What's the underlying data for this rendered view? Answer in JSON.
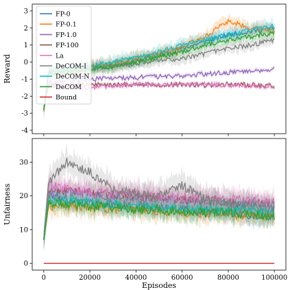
{
  "chart_data": [
    {
      "type": "line",
      "ylabel": "Reward",
      "xlabel": "",
      "xlim": [
        -5000,
        105000
      ],
      "ylim": [
        -4.2,
        3.4
      ],
      "yticks": [
        "-4",
        "-3",
        "-2",
        "-1",
        "0",
        "1",
        "2",
        "3"
      ],
      "grid": false,
      "legend_position": "upper-left",
      "series": [
        {
          "name": "FP-0",
          "color": "#1f77b4",
          "start": -2.8,
          "x": [
            2000,
            10000,
            20000,
            30000,
            40000,
            50000,
            60000,
            70000,
            80000,
            90000,
            100000
          ],
          "y": [
            -0.6,
            -0.5,
            -0.3,
            -0.2,
            0.1,
            0.4,
            0.8,
            1.2,
            1.6,
            1.8,
            2.0
          ],
          "band": 0.3
        },
        {
          "name": "FP-0.1",
          "color": "#ff7f0e",
          "start": -2.9,
          "x": [
            2000,
            10000,
            20000,
            30000,
            40000,
            50000,
            60000,
            70000,
            80000,
            90000,
            100000
          ],
          "y": [
            -0.6,
            -0.5,
            -0.3,
            -0.1,
            0.2,
            0.5,
            0.9,
            1.5,
            2.4,
            2.0,
            1.9
          ],
          "band": 0.35
        },
        {
          "name": "FP-1.0",
          "color": "#9467bd",
          "start": -2.7,
          "x": [
            2000,
            10000,
            20000,
            30000,
            40000,
            50000,
            60000,
            70000,
            80000,
            90000,
            100000
          ],
          "y": [
            -1.2,
            -1.1,
            -1.0,
            -0.95,
            -0.9,
            -0.85,
            -0.8,
            -0.7,
            -0.6,
            -0.5,
            -0.4
          ],
          "band": 0.12
        },
        {
          "name": "FP-100",
          "color": "#8c564b",
          "start": -2.8,
          "x": [
            2000,
            10000,
            20000,
            30000,
            40000,
            50000,
            60000,
            70000,
            80000,
            90000,
            100000
          ],
          "y": [
            -1.4,
            -1.35,
            -1.3,
            -1.35,
            -1.3,
            -1.35,
            -1.3,
            -1.35,
            -1.3,
            -1.35,
            -1.4
          ],
          "band": 0.1
        },
        {
          "name": "La",
          "color": "#e377c2",
          "start": -2.8,
          "x": [
            2000,
            10000,
            20000,
            30000,
            40000,
            50000,
            60000,
            70000,
            80000,
            90000,
            100000
          ],
          "y": [
            -1.3,
            -1.4,
            -1.5,
            -1.4,
            -1.3,
            -1.35,
            -1.3,
            -1.3,
            -1.35,
            -1.4,
            -1.4
          ],
          "band": 0.12
        },
        {
          "name": "DeCOM-I",
          "color": "#7f7f7f",
          "start": -2.8,
          "x": [
            2000,
            10000,
            20000,
            30000,
            40000,
            50000,
            60000,
            70000,
            80000,
            90000,
            100000
          ],
          "y": [
            -0.6,
            -0.6,
            -0.4,
            -0.3,
            -0.1,
            0.1,
            0.2,
            0.5,
            0.8,
            1.0,
            1.3
          ],
          "band": 0.3
        },
        {
          "name": "DeCOM-N",
          "color": "#17becf",
          "start": -2.8,
          "x": [
            2000,
            10000,
            20000,
            30000,
            40000,
            50000,
            60000,
            70000,
            80000,
            90000,
            100000
          ],
          "y": [
            -0.5,
            -0.4,
            -0.2,
            0.0,
            0.3,
            0.6,
            1.0,
            1.3,
            1.6,
            1.9,
            2.1
          ],
          "band": 0.35
        },
        {
          "name": "DeCOM",
          "color": "#2ca02c",
          "start": -2.8,
          "x": [
            2000,
            10000,
            20000,
            30000,
            40000,
            50000,
            60000,
            70000,
            80000,
            90000,
            100000
          ],
          "y": [
            -0.7,
            -0.6,
            -0.4,
            -0.3,
            0.0,
            0.3,
            0.6,
            1.0,
            1.3,
            1.5,
            1.7
          ],
          "band": 0.3
        },
        {
          "name": "Bound",
          "color": "#d62728",
          "start": null,
          "x": [],
          "y": [],
          "band": 0
        }
      ]
    },
    {
      "type": "line",
      "ylabel": "Unfairness",
      "xlabel": "Episodes",
      "xlim": [
        -5000,
        105000
      ],
      "ylim": [
        -2,
        37
      ],
      "yticks": [
        "0",
        "10",
        "20",
        "30"
      ],
      "xticks": [
        "0",
        "20000",
        "40000",
        "60000",
        "80000",
        "100000"
      ],
      "grid": false,
      "series": [
        {
          "name": "FP-0",
          "color": "#1f77b4",
          "start": 7,
          "x": [
            2000,
            10000,
            20000,
            30000,
            40000,
            50000,
            60000,
            70000,
            80000,
            90000,
            100000
          ],
          "y": [
            20,
            19,
            18,
            17.5,
            17,
            16.5,
            16,
            15.5,
            15,
            14.5,
            14
          ],
          "band": 2.5
        },
        {
          "name": "FP-0.1",
          "color": "#ff7f0e",
          "start": 7,
          "x": [
            2000,
            10000,
            20000,
            30000,
            40000,
            50000,
            60000,
            70000,
            80000,
            90000,
            100000
          ],
          "y": [
            17,
            17,
            16.5,
            16,
            16,
            15.5,
            15,
            15,
            14.5,
            14.5,
            14
          ],
          "band": 2.5
        },
        {
          "name": "FP-1.0",
          "color": "#9467bd",
          "start": 7,
          "x": [
            2000,
            10000,
            20000,
            30000,
            40000,
            50000,
            60000,
            70000,
            80000,
            90000,
            100000
          ],
          "y": [
            21,
            21,
            20.5,
            20,
            19.5,
            19,
            18.5,
            18,
            17.5,
            17.5,
            17
          ],
          "band": 2.5
        },
        {
          "name": "FP-100",
          "color": "#8c564b",
          "start": 7,
          "x": [
            2000,
            10000,
            20000,
            30000,
            40000,
            50000,
            60000,
            70000,
            80000,
            90000,
            100000
          ],
          "y": [
            22,
            21.5,
            21,
            20.5,
            20,
            19.5,
            19,
            18.5,
            18,
            18,
            17.5
          ],
          "band": 2.5
        },
        {
          "name": "La",
          "color": "#e377c2",
          "start": 7,
          "x": [
            2000,
            10000,
            20000,
            30000,
            40000,
            50000,
            60000,
            70000,
            80000,
            90000,
            100000
          ],
          "y": [
            23,
            22,
            21,
            21,
            20.5,
            20,
            19.5,
            19,
            19,
            18.5,
            18
          ],
          "band": 3
        },
        {
          "name": "DeCOM-I",
          "color": "#7f7f7f",
          "start": 7,
          "x": [
            2000,
            10000,
            20000,
            30000,
            40000,
            50000,
            60000,
            70000,
            80000,
            90000,
            100000
          ],
          "y": [
            24,
            30,
            27,
            22,
            21,
            20,
            23,
            19,
            18,
            17,
            16
          ],
          "band": 3.5
        },
        {
          "name": "DeCOM-N",
          "color": "#17becf",
          "start": 7,
          "x": [
            2000,
            10000,
            20000,
            30000,
            40000,
            50000,
            60000,
            70000,
            80000,
            90000,
            100000
          ],
          "y": [
            19,
            18.5,
            18,
            17.5,
            17,
            16.5,
            16,
            16,
            15.5,
            15.5,
            15
          ],
          "band": 2.5
        },
        {
          "name": "DeCOM",
          "color": "#2ca02c",
          "start": 7,
          "x": [
            2000,
            10000,
            20000,
            30000,
            40000,
            50000,
            60000,
            70000,
            80000,
            90000,
            100000
          ],
          "y": [
            18,
            17.5,
            17,
            16.5,
            16,
            16,
            15.5,
            15,
            15,
            14.5,
            14
          ],
          "band": 2.5
        },
        {
          "name": "Bound",
          "color": "#d62728",
          "start": 0,
          "x": [
            0,
            100000
          ],
          "y": [
            0,
            0
          ],
          "band": 0
        }
      ]
    }
  ]
}
